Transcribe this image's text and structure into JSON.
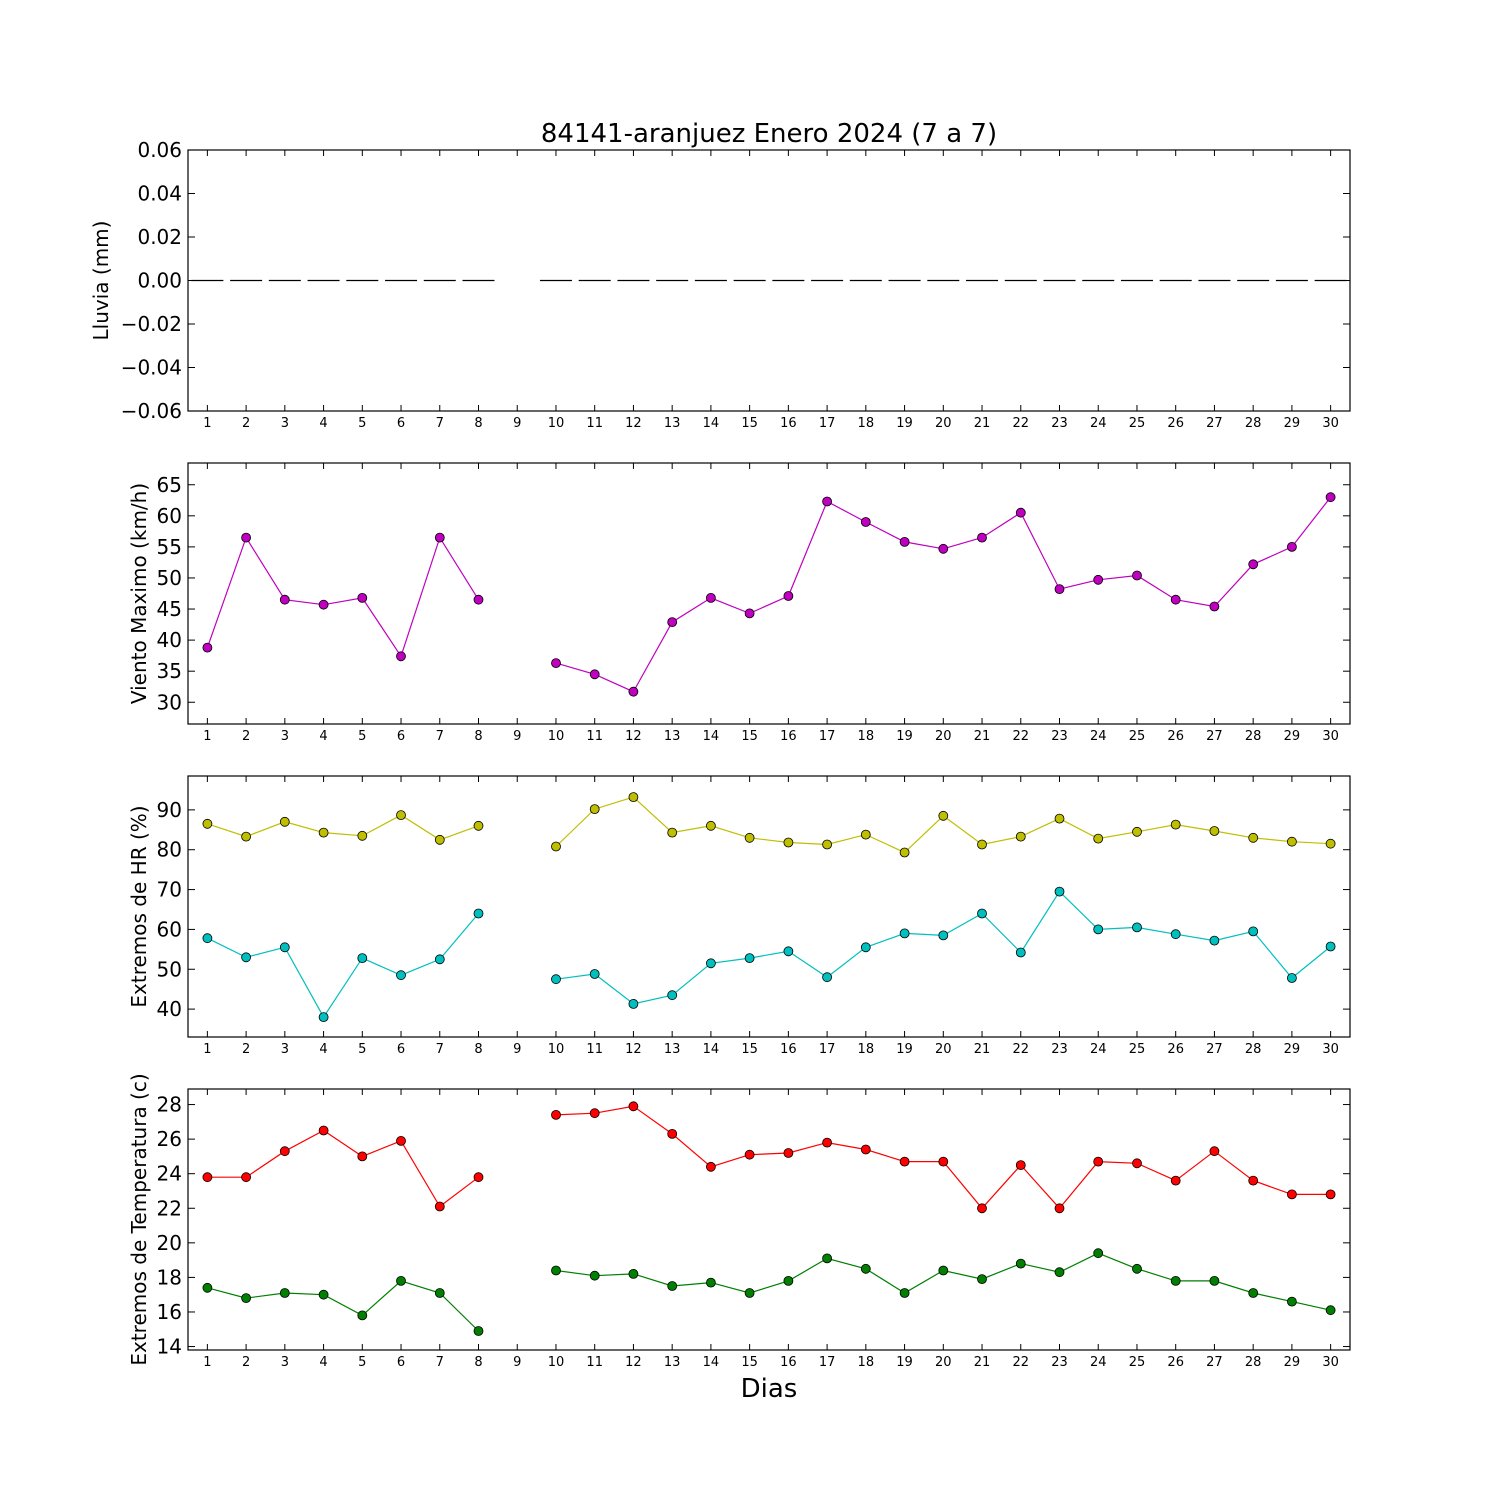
{
  "chart_data": {
    "title": "84141-aranjuez Enero 2024  (7 a 7)",
    "xlabel": "Dias",
    "x_ticks": [
      "1",
      "2",
      "3",
      "4",
      "5",
      "6",
      "7",
      "8",
      "9",
      "10",
      "11",
      "12",
      "13",
      "14",
      "15",
      "16",
      "17",
      "18",
      "19",
      "20",
      "21",
      "22",
      "23",
      "24",
      "25",
      "26",
      "27",
      "28",
      "29",
      "30"
    ],
    "panels": [
      {
        "type": "line",
        "ylabel": "Lluvia (mm)",
        "ylim": [
          -0.06,
          0.06
        ],
        "yticks": [
          "0.06",
          "0.04",
          "0.02",
          "0.00",
          "−0.02",
          "−0.04",
          "−0.06"
        ],
        "ytick_values": [
          0.06,
          0.04,
          0.02,
          0.0,
          -0.02,
          -0.04,
          -0.06
        ],
        "grid": false,
        "series": [
          {
            "style": "bar-segments",
            "color": "#000000",
            "values": [
              0,
              0,
              0,
              0,
              0,
              0,
              0,
              0,
              null,
              0,
              0,
              0,
              0,
              0,
              0,
              0,
              0,
              0,
              0,
              0,
              0,
              0,
              0,
              0,
              0,
              0,
              0,
              0,
              0,
              0
            ]
          }
        ]
      },
      {
        "type": "line",
        "ylabel": "Viento Maximo (km/h)",
        "ylim": [
          26.5,
          68.5
        ],
        "yticks": [
          "65",
          "60",
          "55",
          "50",
          "45",
          "40",
          "35",
          "30"
        ],
        "ytick_values": [
          65,
          60,
          55,
          50,
          45,
          40,
          35,
          30
        ],
        "grid": false,
        "series": [
          {
            "color": "#bf00bf",
            "values": [
              38.8,
              56.5,
              46.5,
              45.7,
              46.8,
              37.4,
              56.5,
              46.5,
              null,
              36.3,
              34.5,
              31.7,
              42.9,
              46.8,
              44.3,
              47.1,
              62.3,
              59.0,
              55.8,
              54.7,
              56.5,
              60.5,
              48.2,
              49.7,
              50.4,
              46.5,
              45.4,
              52.2,
              55.0,
              63.0
            ]
          }
        ]
      },
      {
        "type": "line",
        "ylabel": "Extremos de HR (%)",
        "ylim": [
          33,
          98.5
        ],
        "yticks": [
          "90",
          "80",
          "70",
          "60",
          "50",
          "40"
        ],
        "ytick_values": [
          90,
          80,
          70,
          60,
          50,
          40
        ],
        "grid": false,
        "series": [
          {
            "color": "#bfbf00",
            "values": [
              86.5,
              83.3,
              87,
              84.3,
              83.5,
              88.7,
              82.5,
              86,
              null,
              80.8,
              90.2,
              93.2,
              84.3,
              86,
              83,
              81.8,
              81.3,
              83.8,
              79.3,
              88.5,
              81.3,
              83.3,
              87.8,
              82.8,
              84.5,
              86.3,
              84.7,
              83,
              82,
              81.5
            ]
          },
          {
            "color": "#00bfbf",
            "values": [
              57.8,
              53,
              55.5,
              38,
              52.8,
              48.5,
              52.5,
              64,
              null,
              47.5,
              48.8,
              41.3,
              43.5,
              51.5,
              52.8,
              54.5,
              48,
              55.5,
              59,
              58.5,
              64,
              54.2,
              69.5,
              60,
              60.5,
              58.8,
              57.2,
              59.5,
              47.8,
              55.7
            ]
          }
        ]
      },
      {
        "type": "line",
        "ylabel": "Extremos de Temperatura (c)",
        "ylim": [
          13.8,
          28.9
        ],
        "yticks": [
          "28",
          "26",
          "24",
          "22",
          "20",
          "18",
          "16",
          "14"
        ],
        "ytick_values": [
          28,
          26,
          24,
          22,
          20,
          18,
          16,
          14
        ],
        "grid": false,
        "series": [
          {
            "color": "#ff0000",
            "values": [
              23.8,
              23.8,
              25.3,
              26.5,
              25,
              25.9,
              22.1,
              23.8,
              null,
              27.4,
              27.5,
              27.9,
              26.3,
              24.4,
              25.1,
              25.2,
              25.8,
              25.4,
              24.7,
              24.7,
              22,
              24.5,
              22,
              24.7,
              24.6,
              23.6,
              25.3,
              23.6,
              22.8,
              22.8
            ]
          },
          {
            "color": "#007f00",
            "values": [
              17.4,
              16.8,
              17.1,
              17,
              15.8,
              17.8,
              17.1,
              14.9,
              null,
              18.4,
              18.1,
              18.2,
              17.5,
              17.7,
              17.1,
              17.8,
              19.1,
              18.5,
              17.1,
              18.4,
              17.9,
              18.8,
              18.3,
              19.4,
              18.5,
              17.8,
              17.8,
              17.1,
              16.6,
              16.1
            ]
          }
        ]
      }
    ]
  }
}
